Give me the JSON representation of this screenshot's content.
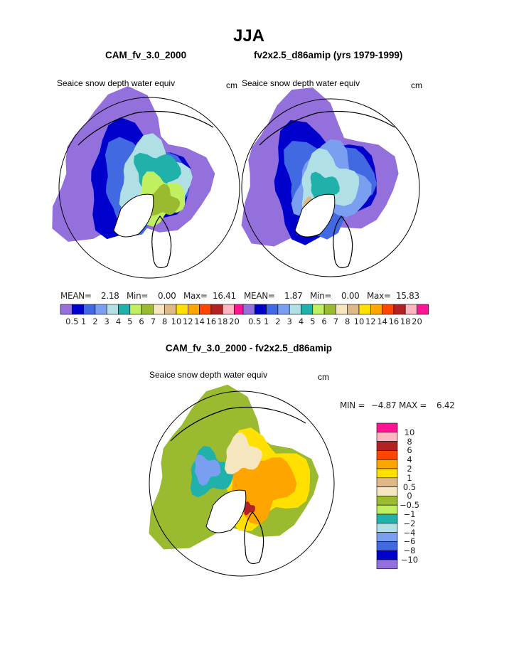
{
  "title": "JJA",
  "panels": [
    {
      "case": "CAM_fv_3.0_2000",
      "variable": "Seaice snow depth water equiv",
      "units": "cm",
      "stats": {
        "mean_label": "MEAN=",
        "mean": "2.18",
        "min_label": "Min=",
        "min": "0.00",
        "max_label": "Max=",
        "max": "16.41"
      }
    },
    {
      "case": "fv2x2.5_d86amip (yrs 1979-1999)",
      "variable": "Seaice snow depth water equiv",
      "units": "cm",
      "stats": {
        "mean_label": "MEAN=",
        "mean": "1.87",
        "min_label": "Min=",
        "min": "0.00",
        "max_label": "Max=",
        "max": "15.83"
      }
    }
  ],
  "diff": {
    "title": "CAM_fv_3.0_2000 - fv2x2.5_d86amip",
    "variable": "Seaice snow depth water equiv",
    "units": "cm",
    "min_label": "MIN =",
    "min": "−4.87",
    "max_label": "MAX =",
    "max": "6.42"
  },
  "colorbar_levels": [
    "0.5",
    "1",
    "2",
    "3",
    "4",
    "5",
    "6",
    "7",
    "8",
    "10",
    "12",
    "14",
    "16",
    "18",
    "20"
  ],
  "diff_levels": [
    "10",
    "8",
    "6",
    "4",
    "2",
    "1",
    "0.5",
    "0",
    "−0.5",
    "−1",
    "−2",
    "−4",
    "−6",
    "−8",
    "−10"
  ],
  "colors": [
    "#9370db",
    "#0000cd",
    "#4169e1",
    "#7b9ff0",
    "#b0e0e6",
    "#20b2aa",
    "#c0f060",
    "#9aba30",
    "#f5e6c0",
    "#deb887",
    "#ffe000",
    "#ffa500",
    "#ff4500",
    "#b22222",
    "#ffb6c1",
    "#ff1493"
  ]
}
